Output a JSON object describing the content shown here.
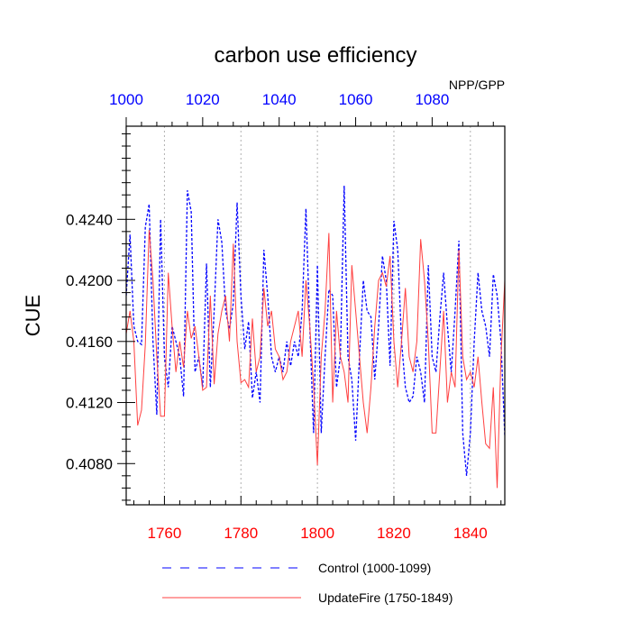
{
  "chart_data": {
    "type": "line",
    "title": "carbon use efficiency",
    "units_label": "NPP/GPP",
    "ylabel": "CUE",
    "ylim": [
      0.4053,
      0.4301
    ],
    "yticks": [
      0.408,
      0.412,
      0.416,
      0.42,
      0.424
    ],
    "ytick_labels": [
      "0.4080",
      "0.4120",
      "0.4160",
      "0.4200",
      "0.4240"
    ],
    "grid": "vertical dotted",
    "legend_position": "bottom",
    "x_bottom": {
      "range": [
        1750,
        1849
      ],
      "ticks": [
        1760,
        1780,
        1800,
        1820,
        1840
      ],
      "tick_labels": [
        "1760",
        "1780",
        "1800",
        "1820",
        "1840"
      ],
      "color": "#ff0000"
    },
    "x_top": {
      "range": [
        1000,
        1099
      ],
      "ticks": [
        1000,
        1020,
        1040,
        1060,
        1080
      ],
      "tick_labels": [
        "1000",
        "1020",
        "1040",
        "1060",
        "1080"
      ],
      "color": "#0000ff"
    },
    "series": [
      {
        "name": "Control (1000-1099)",
        "axis": "top",
        "color": "#0000ff",
        "dash": "dashed",
        "start": 1000,
        "values": [
          0.419,
          0.423,
          0.417,
          0.416,
          0.4158,
          0.4235,
          0.425,
          0.416,
          0.4112,
          0.424,
          0.415,
          0.413,
          0.417,
          0.416,
          0.415,
          0.4124,
          0.4259,
          0.4245,
          0.414,
          0.415,
          0.413,
          0.4211,
          0.413,
          0.418,
          0.424,
          0.4225,
          0.418,
          0.4168,
          0.4185,
          0.4251,
          0.419,
          0.4155,
          0.4173,
          0.4123,
          0.414,
          0.412,
          0.422,
          0.419,
          0.415,
          0.414,
          0.415,
          0.414,
          0.416,
          0.4144,
          0.416,
          0.415,
          0.418,
          0.4247,
          0.417,
          0.41,
          0.421,
          0.41,
          0.415,
          0.4194,
          0.419,
          0.413,
          0.415,
          0.4262,
          0.415,
          0.4135,
          0.4095,
          0.415,
          0.42,
          0.418,
          0.4176,
          0.4135,
          0.417,
          0.4216,
          0.42,
          0.4144,
          0.4239,
          0.422,
          0.416,
          0.413,
          0.412,
          0.4124,
          0.415,
          0.414,
          0.412,
          0.421,
          0.415,
          0.414,
          0.4175,
          0.4205,
          0.417,
          0.414,
          0.418,
          0.4226,
          0.41,
          0.4072,
          0.41,
          0.416,
          0.4205,
          0.418,
          0.417,
          0.415,
          0.4204,
          0.419,
          0.416,
          0.4098
        ]
      },
      {
        "name": "UpdateFire (1750-1849)",
        "axis": "bottom",
        "color": "#ff4040",
        "dash": "solid",
        "start": 1750,
        "values": [
          0.4165,
          0.418,
          0.416,
          0.4105,
          0.4115,
          0.4158,
          0.4233,
          0.42,
          0.415,
          0.4111,
          0.4111,
          0.4205,
          0.417,
          0.414,
          0.416,
          0.4143,
          0.418,
          0.4162,
          0.417,
          0.415,
          0.4128,
          0.413,
          0.419,
          0.4132,
          0.4165,
          0.418,
          0.419,
          0.416,
          0.4224,
          0.416,
          0.4133,
          0.4135,
          0.413,
          0.4175,
          0.414,
          0.415,
          0.4195,
          0.417,
          0.418,
          0.4155,
          0.415,
          0.4135,
          0.414,
          0.416,
          0.417,
          0.418,
          0.415,
          0.42,
          0.417,
          0.4131,
          0.4079,
          0.415,
          0.418,
          0.4231,
          0.412,
          0.418,
          0.415,
          0.414,
          0.412,
          0.421,
          0.418,
          0.415,
          0.412,
          0.41,
          0.413,
          0.417,
          0.42,
          0.4205,
          0.4196,
          0.4216,
          0.416,
          0.413,
          0.416,
          0.4195,
          0.415,
          0.414,
          0.416,
          0.4227,
          0.42,
          0.416,
          0.41,
          0.41,
          0.414,
          0.418,
          0.412,
          0.414,
          0.413,
          0.422,
          0.415,
          0.4135,
          0.414,
          0.413,
          0.415,
          0.412,
          0.4093,
          0.409,
          0.413,
          0.4064,
          0.415,
          0.42
        ]
      }
    ]
  }
}
